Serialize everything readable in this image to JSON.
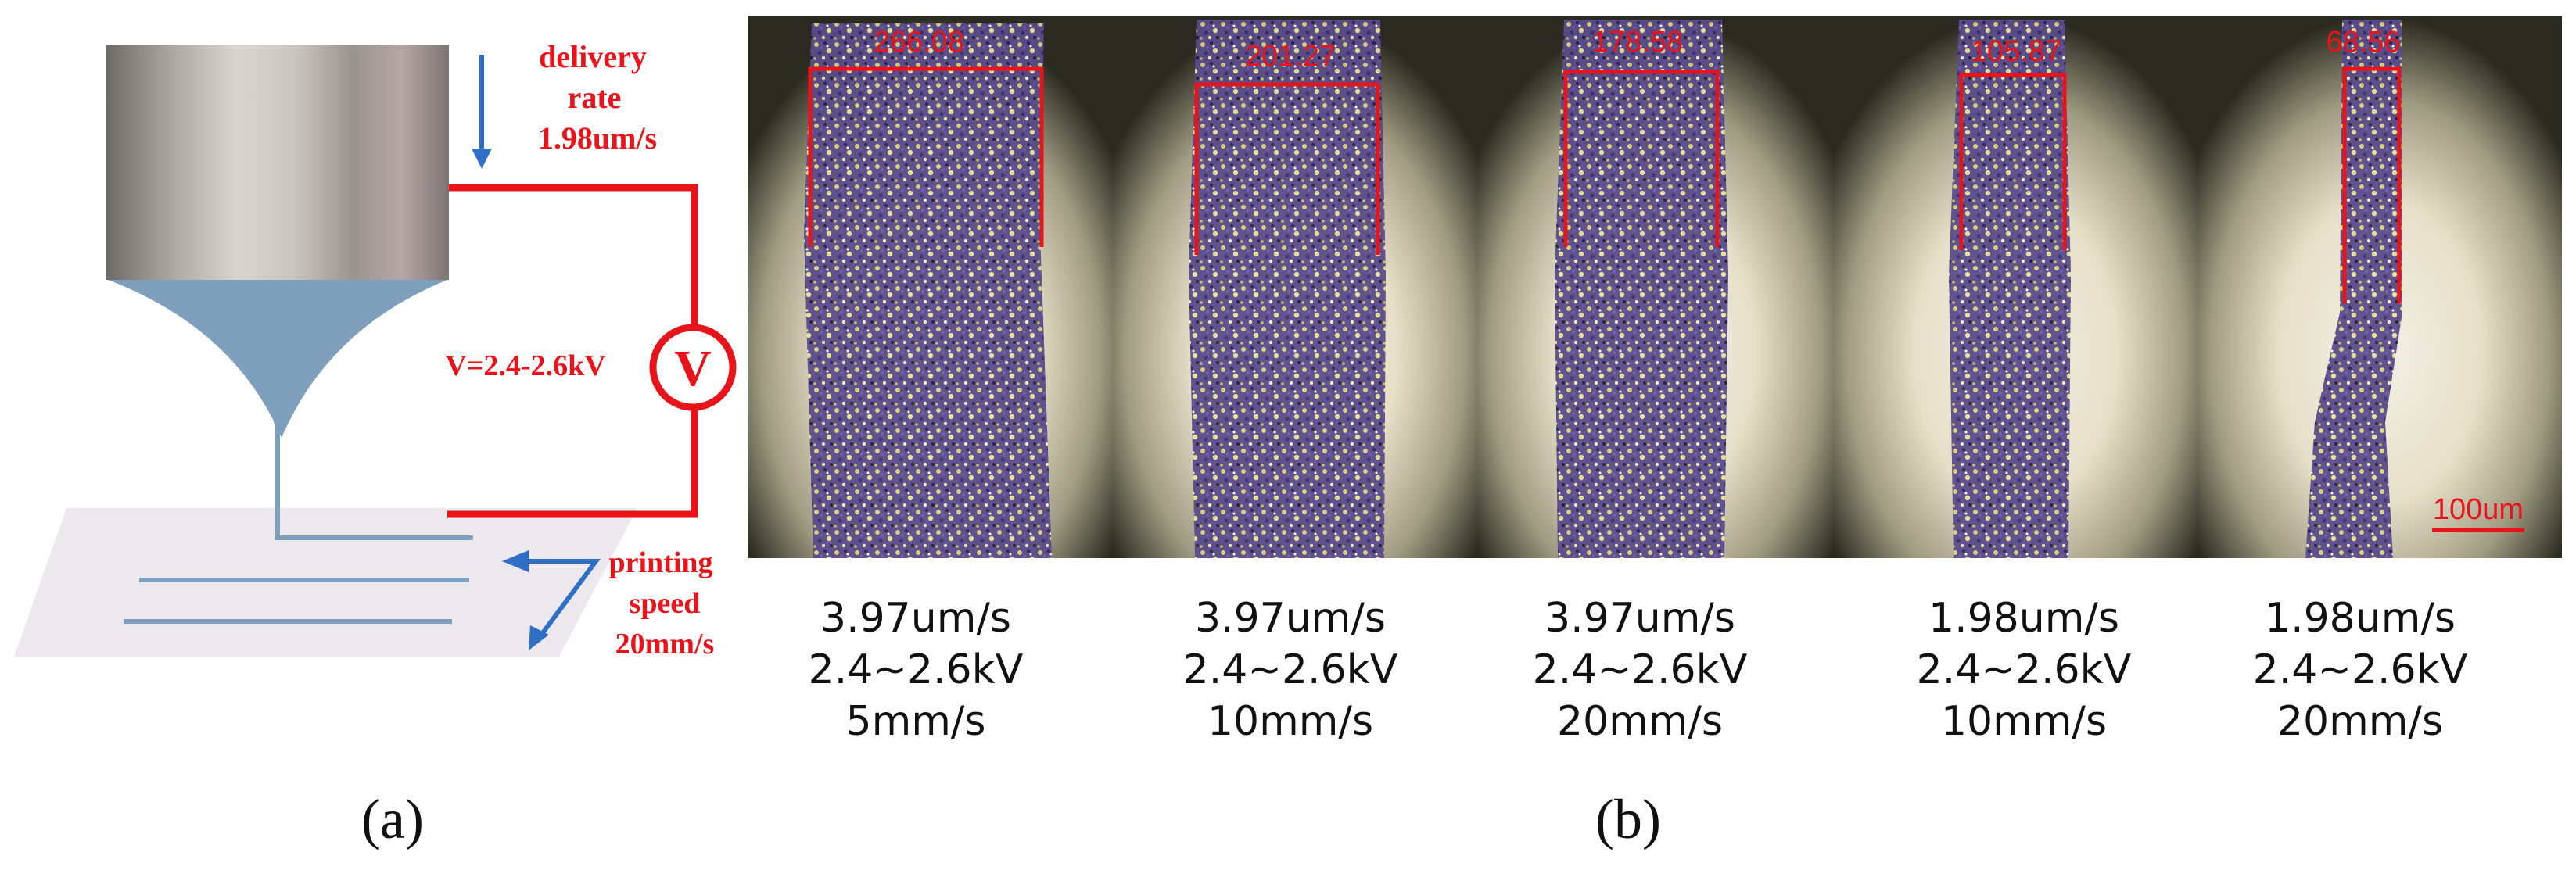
{
  "panel_a": {
    "label": "(a)",
    "delivery_rate_title": [
      "delivery",
      "rate"
    ],
    "delivery_rate_value": "1.98um/s",
    "voltage_label": "V=2.4-2.6kV",
    "voltmeter_symbol": "V",
    "printing_speed_title": [
      "printing",
      "speed"
    ],
    "printing_speed_value": "20mm/s",
    "colors": {
      "circuit": "#e8141c",
      "arrow": "#2f6fc6",
      "nozzle": "#7fa0bd",
      "stage": "#ece8ee"
    }
  },
  "panel_b": {
    "label": "(b)",
    "scale_bar": "100um",
    "micrographs": [
      {
        "width_value": "266.08",
        "delivery": "3.97um/s",
        "voltage": "2.4~2.6kV",
        "speed": "5mm/s"
      },
      {
        "width_value": "201.27",
        "delivery": "3.97um/s",
        "voltage": "2.4~2.6kV",
        "speed": "10mm/s"
      },
      {
        "width_value": "178.58",
        "delivery": "3.97um/s",
        "voltage": "2.4~2.6kV",
        "speed": "20mm/s"
      },
      {
        "width_value": "105.87",
        "delivery": "1.98um/s",
        "voltage": "2.4~2.6kV",
        "speed": "10mm/s"
      },
      {
        "width_value": "68.56",
        "delivery": "1.98um/s",
        "voltage": "2.4~2.6kV",
        "speed": "20mm/s"
      }
    ]
  }
}
